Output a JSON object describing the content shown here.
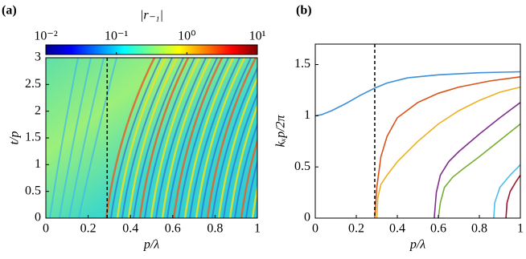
{
  "chart_data": [
    {
      "type": "heatmap",
      "panel_label": "(a)",
      "colorbar_label": "|r₋₁|",
      "xlabel": "p/λ",
      "ylabel": "t/p",
      "xlim": [
        0,
        1
      ],
      "xticks": [
        0,
        0.2,
        0.4,
        0.6,
        0.8,
        1
      ],
      "ylim": [
        0,
        3
      ],
      "yticks": [
        0,
        0.5,
        1,
        1.5,
        2,
        2.5,
        3
      ],
      "clim": [
        0.01,
        10
      ],
      "log_color": true,
      "cticks": [
        {
          "value": 0.01,
          "label": "10⁻²"
        },
        {
          "value": 0.1,
          "label": "10⁻¹"
        },
        {
          "value": 1,
          "label": "10⁰"
        },
        {
          "value": 10,
          "label": "10¹"
        }
      ],
      "vline": 0.29
    },
    {
      "type": "line",
      "panel_label": "(b)",
      "xlabel": "p/λ",
      "ylabel": "kₓp/2π",
      "xlim": [
        0,
        1
      ],
      "xticks": [
        0,
        0.2,
        0.4,
        0.6,
        0.8,
        1
      ],
      "ylim": [
        0,
        1.7
      ],
      "yticks": [
        0,
        0.5,
        1,
        1.5
      ],
      "vline": 0.29,
      "series": [
        {
          "color": "#3d8fd9",
          "x": [
            0,
            0.03,
            0.08,
            0.15,
            0.22,
            0.29,
            0.35,
            0.45,
            0.6,
            0.8,
            1
          ],
          "values": [
            1.0,
            1.01,
            1.05,
            1.12,
            1.2,
            1.27,
            1.32,
            1.37,
            1.4,
            1.42,
            1.43
          ]
        },
        {
          "color": "#d95319",
          "x": [
            0.29,
            0.295,
            0.3,
            0.32,
            0.35,
            0.4,
            0.5,
            0.6,
            0.7,
            0.85,
            1
          ],
          "values": [
            0,
            0.15,
            0.3,
            0.6,
            0.8,
            0.98,
            1.13,
            1.22,
            1.28,
            1.34,
            1.38
          ]
        },
        {
          "color": "#edb120",
          "x": [
            0.3,
            0.305,
            0.32,
            0.35,
            0.4,
            0.5,
            0.6,
            0.7,
            0.8,
            0.9,
            1
          ],
          "values": [
            0,
            0.2,
            0.33,
            0.42,
            0.55,
            0.75,
            0.92,
            1.05,
            1.15,
            1.23,
            1.28
          ]
        },
        {
          "color": "#7e2f8e",
          "x": [
            0.58,
            0.59,
            0.61,
            0.65,
            0.7,
            0.8,
            0.9,
            1
          ],
          "values": [
            0,
            0.25,
            0.42,
            0.55,
            0.65,
            0.82,
            0.98,
            1.13
          ]
        },
        {
          "color": "#77ac30",
          "x": [
            0.6,
            0.61,
            0.63,
            0.67,
            0.72,
            0.8,
            0.9,
            1
          ],
          "values": [
            0,
            0.15,
            0.3,
            0.4,
            0.48,
            0.6,
            0.76,
            0.92
          ]
        },
        {
          "color": "#4dbeee",
          "x": [
            0.87,
            0.875,
            0.9,
            0.95,
            1
          ],
          "values": [
            0,
            0.15,
            0.3,
            0.42,
            0.52
          ]
        },
        {
          "color": "#a2142f",
          "x": [
            0.93,
            0.935,
            0.95,
            0.98,
            1
          ],
          "values": [
            0,
            0.15,
            0.26,
            0.36,
            0.42
          ]
        }
      ]
    }
  ]
}
